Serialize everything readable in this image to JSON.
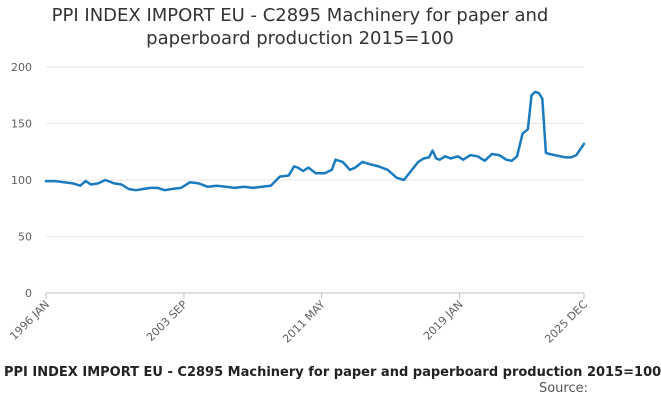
{
  "chart_data": {
    "type": "line",
    "title_line1": "PPI INDEX IMPORT EU - C2895 Machinery for paper and",
    "title_line2": "paperboard production 2015=100",
    "xlabel": "",
    "ylabel": "",
    "ylim": [
      0,
      200
    ],
    "yticks": [
      0,
      50,
      100,
      150,
      200
    ],
    "xlim": [
      1996.0,
      2025.92
    ],
    "xtick_labels": [
      {
        "label": "1996 JAN",
        "x": 1996.0
      },
      {
        "label": "2003 SEP",
        "x": 2003.67
      },
      {
        "label": "2011 MAY",
        "x": 2011.33
      },
      {
        "label": "2019 JAN",
        "x": 2019.0
      },
      {
        "label": "2025 DEC",
        "x": 2025.92
      }
    ],
    "series": [
      {
        "name": "PPI INDEX IMPORT EU - C2895 Machinery for paper and paperboard production 2015=100",
        "color": "#1a7bbf",
        "x": [
          1996.0,
          1996.5,
          1997.0,
          1997.5,
          1997.9,
          1998.2,
          1998.5,
          1998.9,
          1999.3,
          1999.8,
          2000.2,
          2000.6,
          2001.0,
          2001.4,
          2001.8,
          2002.2,
          2002.6,
          2003.0,
          2003.5,
          2004.0,
          2004.5,
          2005.0,
          2005.5,
          2006.0,
          2006.5,
          2007.0,
          2007.5,
          2008.0,
          2008.5,
          2009.0,
          2009.5,
          2009.8,
          2010.0,
          2010.3,
          2010.6,
          2011.0,
          2011.5,
          2011.9,
          2012.1,
          2012.5,
          2012.9,
          2013.2,
          2013.6,
          2014.0,
          2014.5,
          2015.0,
          2015.5,
          2015.9,
          2016.3,
          2016.7,
          2017.0,
          2017.3,
          2017.5,
          2017.7,
          2017.9,
          2018.2,
          2018.5,
          2018.9,
          2019.2,
          2019.6,
          2020.0,
          2020.4,
          2020.8,
          2021.2,
          2021.6,
          2021.9,
          2022.2,
          2022.5,
          2022.8,
          2023.0,
          2023.2,
          2023.4,
          2023.6,
          2023.8,
          2024.0,
          2024.3,
          2024.6,
          2024.9,
          2025.2,
          2025.5,
          2025.92
        ],
        "values": [
          99,
          99,
          98,
          97,
          95,
          99,
          96,
          97,
          100,
          97,
          96,
          92,
          91,
          92,
          93,
          93,
          91,
          92,
          93,
          98,
          97,
          94,
          95,
          94,
          93,
          94,
          93,
          94,
          95,
          103,
          104,
          112,
          111,
          108,
          111,
          106,
          106,
          109,
          118,
          116,
          109,
          111,
          116,
          114,
          112,
          109,
          102,
          100,
          108,
          116,
          119,
          120,
          126,
          119,
          118,
          121,
          119,
          121,
          118,
          122,
          121,
          117,
          123,
          122,
          118,
          117,
          121,
          141,
          145,
          175,
          178,
          177,
          172,
          124,
          123,
          122,
          121,
          120,
          120,
          122,
          132
        ]
      }
    ]
  },
  "footer": {
    "caption": "PPI INDEX IMPORT EU - C2895 Machinery for paper and paperboard production 2015=100",
    "source": "Source:"
  }
}
